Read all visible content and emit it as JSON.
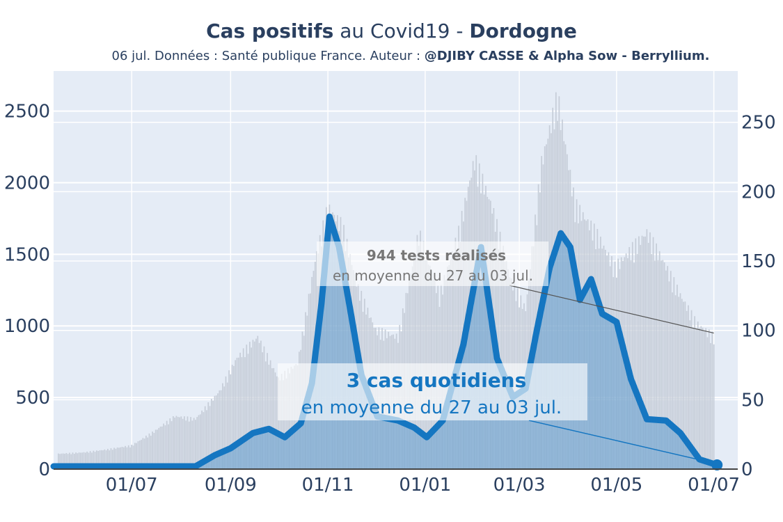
{
  "header": {
    "title_bold1": "Cas positifs",
    "title_mid": " au Covid19 - ",
    "title_bold2": "Dordogne",
    "subtitle_plain": "06 jul. Données : Santé publique France. Auteur : ",
    "subtitle_bold": "@DJIBY CASSE & Alpha Sow - Berryllium."
  },
  "chart_data": {
    "type": "bar",
    "title": "Cas positifs au Covid19 - Dordogne",
    "x_ticks": [
      "01/07",
      "01/09",
      "01/11",
      "01/01",
      "01/03",
      "01/05",
      "01/07"
    ],
    "x_tick_dates": [
      "2020-07-01",
      "2020-09-01",
      "2020-11-01",
      "2021-01-01",
      "2021-03-01",
      "2021-05-01",
      "2021-07-01"
    ],
    "x_range": [
      "2020-05-13",
      "2021-07-16"
    ],
    "y_left": {
      "ticks": [
        0,
        500,
        1000,
        1500,
        2000,
        2500
      ],
      "range": [
        0,
        2780
      ]
    },
    "y_right": {
      "ticks": [
        0,
        50,
        100,
        150,
        200,
        250
      ],
      "range": [
        0,
        287
      ]
    },
    "grid": true,
    "series": [
      {
        "axis": "left",
        "kind": "bars",
        "color": "#c6cdd8",
        "points": [
          [
            "2020-05-16",
            110
          ],
          [
            "2020-06-01",
            120
          ],
          [
            "2020-06-15",
            140
          ],
          [
            "2020-07-01",
            170
          ],
          [
            "2020-07-15",
            270
          ],
          [
            "2020-07-28",
            380
          ],
          [
            "2020-08-10",
            360
          ],
          [
            "2020-08-25",
            560
          ],
          [
            "2020-09-05",
            800
          ],
          [
            "2020-09-18",
            950
          ],
          [
            "2020-10-01",
            650
          ],
          [
            "2020-10-13",
            760
          ],
          [
            "2020-10-24",
            1500
          ],
          [
            "2020-11-01",
            1880
          ],
          [
            "2020-11-10",
            1750
          ],
          [
            "2020-11-20",
            1300
          ],
          [
            "2020-12-01",
            1000
          ],
          [
            "2020-12-15",
            950
          ],
          [
            "2020-12-28",
            1700
          ],
          [
            "2021-01-10",
            1250
          ],
          [
            "2021-01-22",
            1700
          ],
          [
            "2021-02-01",
            2230
          ],
          [
            "2021-02-12",
            1880
          ],
          [
            "2021-02-24",
            1350
          ],
          [
            "2021-03-05",
            1150
          ],
          [
            "2021-03-15",
            2200
          ],
          [
            "2021-03-25",
            2680
          ],
          [
            "2021-04-05",
            1900
          ],
          [
            "2021-04-18",
            1700
          ],
          [
            "2021-04-30",
            1450
          ],
          [
            "2021-05-12",
            1600
          ],
          [
            "2021-05-20",
            1700
          ],
          [
            "2021-05-30",
            1500
          ],
          [
            "2021-06-10",
            1250
          ],
          [
            "2021-06-20",
            1050
          ],
          [
            "2021-07-01",
            950
          ]
        ]
      },
      {
        "axis": "right",
        "kind": "line",
        "color": "#1576c1",
        "points": [
          [
            "2020-05-13",
            2
          ],
          [
            "2020-08-10",
            2
          ],
          [
            "2020-08-22",
            10
          ],
          [
            "2020-09-01",
            15
          ],
          [
            "2020-09-15",
            26
          ],
          [
            "2020-09-25",
            29
          ],
          [
            "2020-10-05",
            23
          ],
          [
            "2020-10-15",
            33
          ],
          [
            "2020-10-22",
            62
          ],
          [
            "2020-10-28",
            120
          ],
          [
            "2020-11-02",
            182
          ],
          [
            "2020-11-08",
            160
          ],
          [
            "2020-11-15",
            115
          ],
          [
            "2020-11-22",
            68
          ],
          [
            "2020-12-02",
            38
          ],
          [
            "2020-12-15",
            35
          ],
          [
            "2020-12-25",
            30
          ],
          [
            "2021-01-02",
            23
          ],
          [
            "2021-01-12",
            35
          ],
          [
            "2021-01-25",
            90
          ],
          [
            "2021-02-05",
            160
          ],
          [
            "2021-02-15",
            80
          ],
          [
            "2021-02-25",
            52
          ],
          [
            "2021-03-05",
            58
          ],
          [
            "2021-03-12",
            100
          ],
          [
            "2021-03-20",
            145
          ],
          [
            "2021-03-27",
            170
          ],
          [
            "2021-04-02",
            160
          ],
          [
            "2021-04-08",
            122
          ],
          [
            "2021-04-15",
            137
          ],
          [
            "2021-04-22",
            112
          ],
          [
            "2021-05-01",
            106
          ],
          [
            "2021-05-10",
            65
          ],
          [
            "2021-05-20",
            36
          ],
          [
            "2021-06-01",
            35
          ],
          [
            "2021-06-10",
            26
          ],
          [
            "2021-06-22",
            7
          ],
          [
            "2021-07-03",
            3
          ]
        ]
      }
    ],
    "annotations": [
      {
        "bold": "944 tests réalisés",
        "text": "en moyenne du 27 au 03 jul.",
        "color": "#777777"
      },
      {
        "bold": "3 cas quotidiens",
        "text": "en moyenne du 27 au 03 jul.",
        "color": "#1576c1"
      }
    ]
  }
}
